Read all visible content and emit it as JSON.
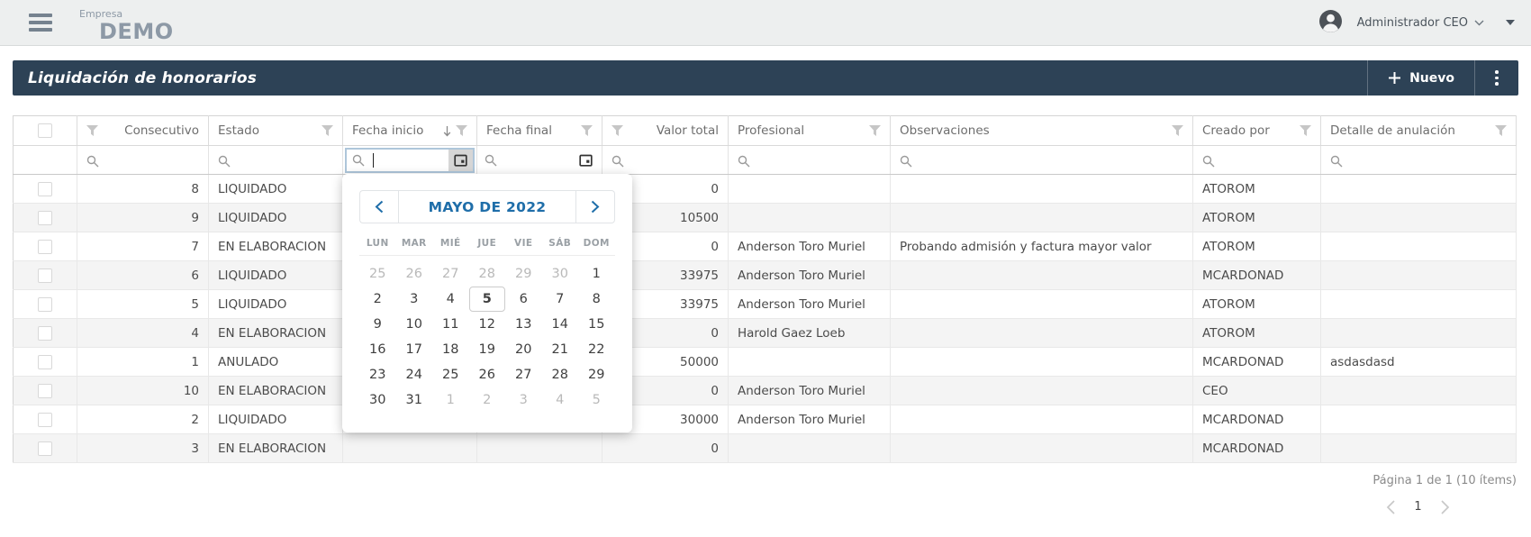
{
  "header": {
    "brand_small": "Empresa",
    "brand_large": "DEMO",
    "user": "Administrador CEO"
  },
  "titlebar": {
    "title": "Liquidación de honorarios",
    "new_button": "Nuevo"
  },
  "table": {
    "columns": [
      "",
      "Consecutivo",
      "Estado",
      "Fecha inicio",
      "Fecha final",
      "Valor total",
      "Profesional",
      "Observaciones",
      "Creado por",
      "Detalle de anulación"
    ],
    "filter_placeholders": {
      "type": "search"
    },
    "rows": [
      {
        "consecutivo": "8",
        "estado": "LIQUIDADO",
        "fecha_inicio": "",
        "fecha_final": "",
        "valor_total": "0",
        "profesional": "",
        "observaciones": "",
        "creado_por": "ATOROM",
        "detalle_anulacion": ""
      },
      {
        "consecutivo": "9",
        "estado": "LIQUIDADO",
        "fecha_inicio": "",
        "fecha_final": "",
        "valor_total": "10500",
        "profesional": "",
        "observaciones": "",
        "creado_por": "ATOROM",
        "detalle_anulacion": ""
      },
      {
        "consecutivo": "7",
        "estado": "EN ELABORACION",
        "fecha_inicio": "",
        "fecha_final": "",
        "valor_total": "0",
        "profesional": "Anderson Toro Muriel",
        "observaciones": "Probando admisión y factura mayor valor",
        "creado_por": "ATOROM",
        "detalle_anulacion": ""
      },
      {
        "consecutivo": "6",
        "estado": "LIQUIDADO",
        "fecha_inicio": "",
        "fecha_final": "",
        "valor_total": "33975",
        "profesional": "Anderson Toro Muriel",
        "observaciones": "",
        "creado_por": "MCARDONAD",
        "detalle_anulacion": ""
      },
      {
        "consecutivo": "5",
        "estado": "LIQUIDADO",
        "fecha_inicio": "",
        "fecha_final": "",
        "valor_total": "33975",
        "profesional": "Anderson Toro Muriel",
        "observaciones": "",
        "creado_por": "ATOROM",
        "detalle_anulacion": ""
      },
      {
        "consecutivo": "4",
        "estado": "EN ELABORACION",
        "fecha_inicio": "",
        "fecha_final": "",
        "valor_total": "0",
        "profesional": "Harold Gaez Loeb",
        "observaciones": "",
        "creado_por": "ATOROM",
        "detalle_anulacion": ""
      },
      {
        "consecutivo": "1",
        "estado": "ANULADO",
        "fecha_inicio": "",
        "fecha_final": "",
        "valor_total": "50000",
        "profesional": "",
        "observaciones": "",
        "creado_por": "MCARDONAD",
        "detalle_anulacion": "asdasdasd"
      },
      {
        "consecutivo": "10",
        "estado": "EN ELABORACION",
        "fecha_inicio": "",
        "fecha_final": "",
        "valor_total": "0",
        "profesional": "Anderson Toro Muriel",
        "observaciones": "",
        "creado_por": "CEO",
        "detalle_anulacion": ""
      },
      {
        "consecutivo": "2",
        "estado": "LIQUIDADO",
        "fecha_inicio": "",
        "fecha_final": "",
        "valor_total": "30000",
        "profesional": "Anderson Toro Muriel",
        "observaciones": "",
        "creado_por": "MCARDONAD",
        "detalle_anulacion": ""
      },
      {
        "consecutivo": "3",
        "estado": "EN ELABORACION",
        "fecha_inicio": "",
        "fecha_final": "",
        "valor_total": "0",
        "profesional": "",
        "observaciones": "",
        "creado_por": "MCARDONAD",
        "detalle_anulacion": ""
      }
    ]
  },
  "calendar": {
    "title": "MAYO DE 2022",
    "weekdays": [
      "LUN",
      "MAR",
      "MIÉ",
      "JUE",
      "VIE",
      "SÁB",
      "DOM"
    ],
    "today": "5",
    "days": [
      {
        "label": "25",
        "muted": true
      },
      {
        "label": "26",
        "muted": true
      },
      {
        "label": "27",
        "muted": true
      },
      {
        "label": "28",
        "muted": true
      },
      {
        "label": "29",
        "muted": true
      },
      {
        "label": "30",
        "muted": true
      },
      {
        "label": "1"
      },
      {
        "label": "2"
      },
      {
        "label": "3"
      },
      {
        "label": "4"
      },
      {
        "label": "5",
        "today": true
      },
      {
        "label": "6"
      },
      {
        "label": "7"
      },
      {
        "label": "8"
      },
      {
        "label": "9"
      },
      {
        "label": "10"
      },
      {
        "label": "11"
      },
      {
        "label": "12"
      },
      {
        "label": "13"
      },
      {
        "label": "14"
      },
      {
        "label": "15"
      },
      {
        "label": "16"
      },
      {
        "label": "17"
      },
      {
        "label": "18"
      },
      {
        "label": "19"
      },
      {
        "label": "20"
      },
      {
        "label": "21"
      },
      {
        "label": "22"
      },
      {
        "label": "23"
      },
      {
        "label": "24"
      },
      {
        "label": "25"
      },
      {
        "label": "26"
      },
      {
        "label": "27"
      },
      {
        "label": "28"
      },
      {
        "label": "29"
      },
      {
        "label": "30"
      },
      {
        "label": "31"
      },
      {
        "label": "1",
        "muted": true
      },
      {
        "label": "2",
        "muted": true
      },
      {
        "label": "3",
        "muted": true
      },
      {
        "label": "4",
        "muted": true
      },
      {
        "label": "5",
        "muted": true
      }
    ]
  },
  "pagination": {
    "summary": "Página 1 de 1 (10 ítems)",
    "page": "1"
  },
  "icons": {
    "hamburger-menu-icon": "three-bars",
    "user-avatar": "person-circle",
    "chevron-down-icon": "⌄",
    "dropdown-caret-icon": "▾",
    "plus-icon": "+",
    "kebab-menu-icon": "⋮",
    "filter-icon": "funnel",
    "sort-desc-icon": "↓",
    "search-icon": "magnifier",
    "calendar-icon": "calendar",
    "chevron-left-icon": "‹",
    "chevron-right-icon": "›"
  },
  "colors": {
    "accent": "#1f6ea9",
    "titlebar_bg": "#2d4256",
    "topbar_bg": "#edefef",
    "brand_text": "#8d99a6",
    "row_alt": "#f4f4f4"
  }
}
